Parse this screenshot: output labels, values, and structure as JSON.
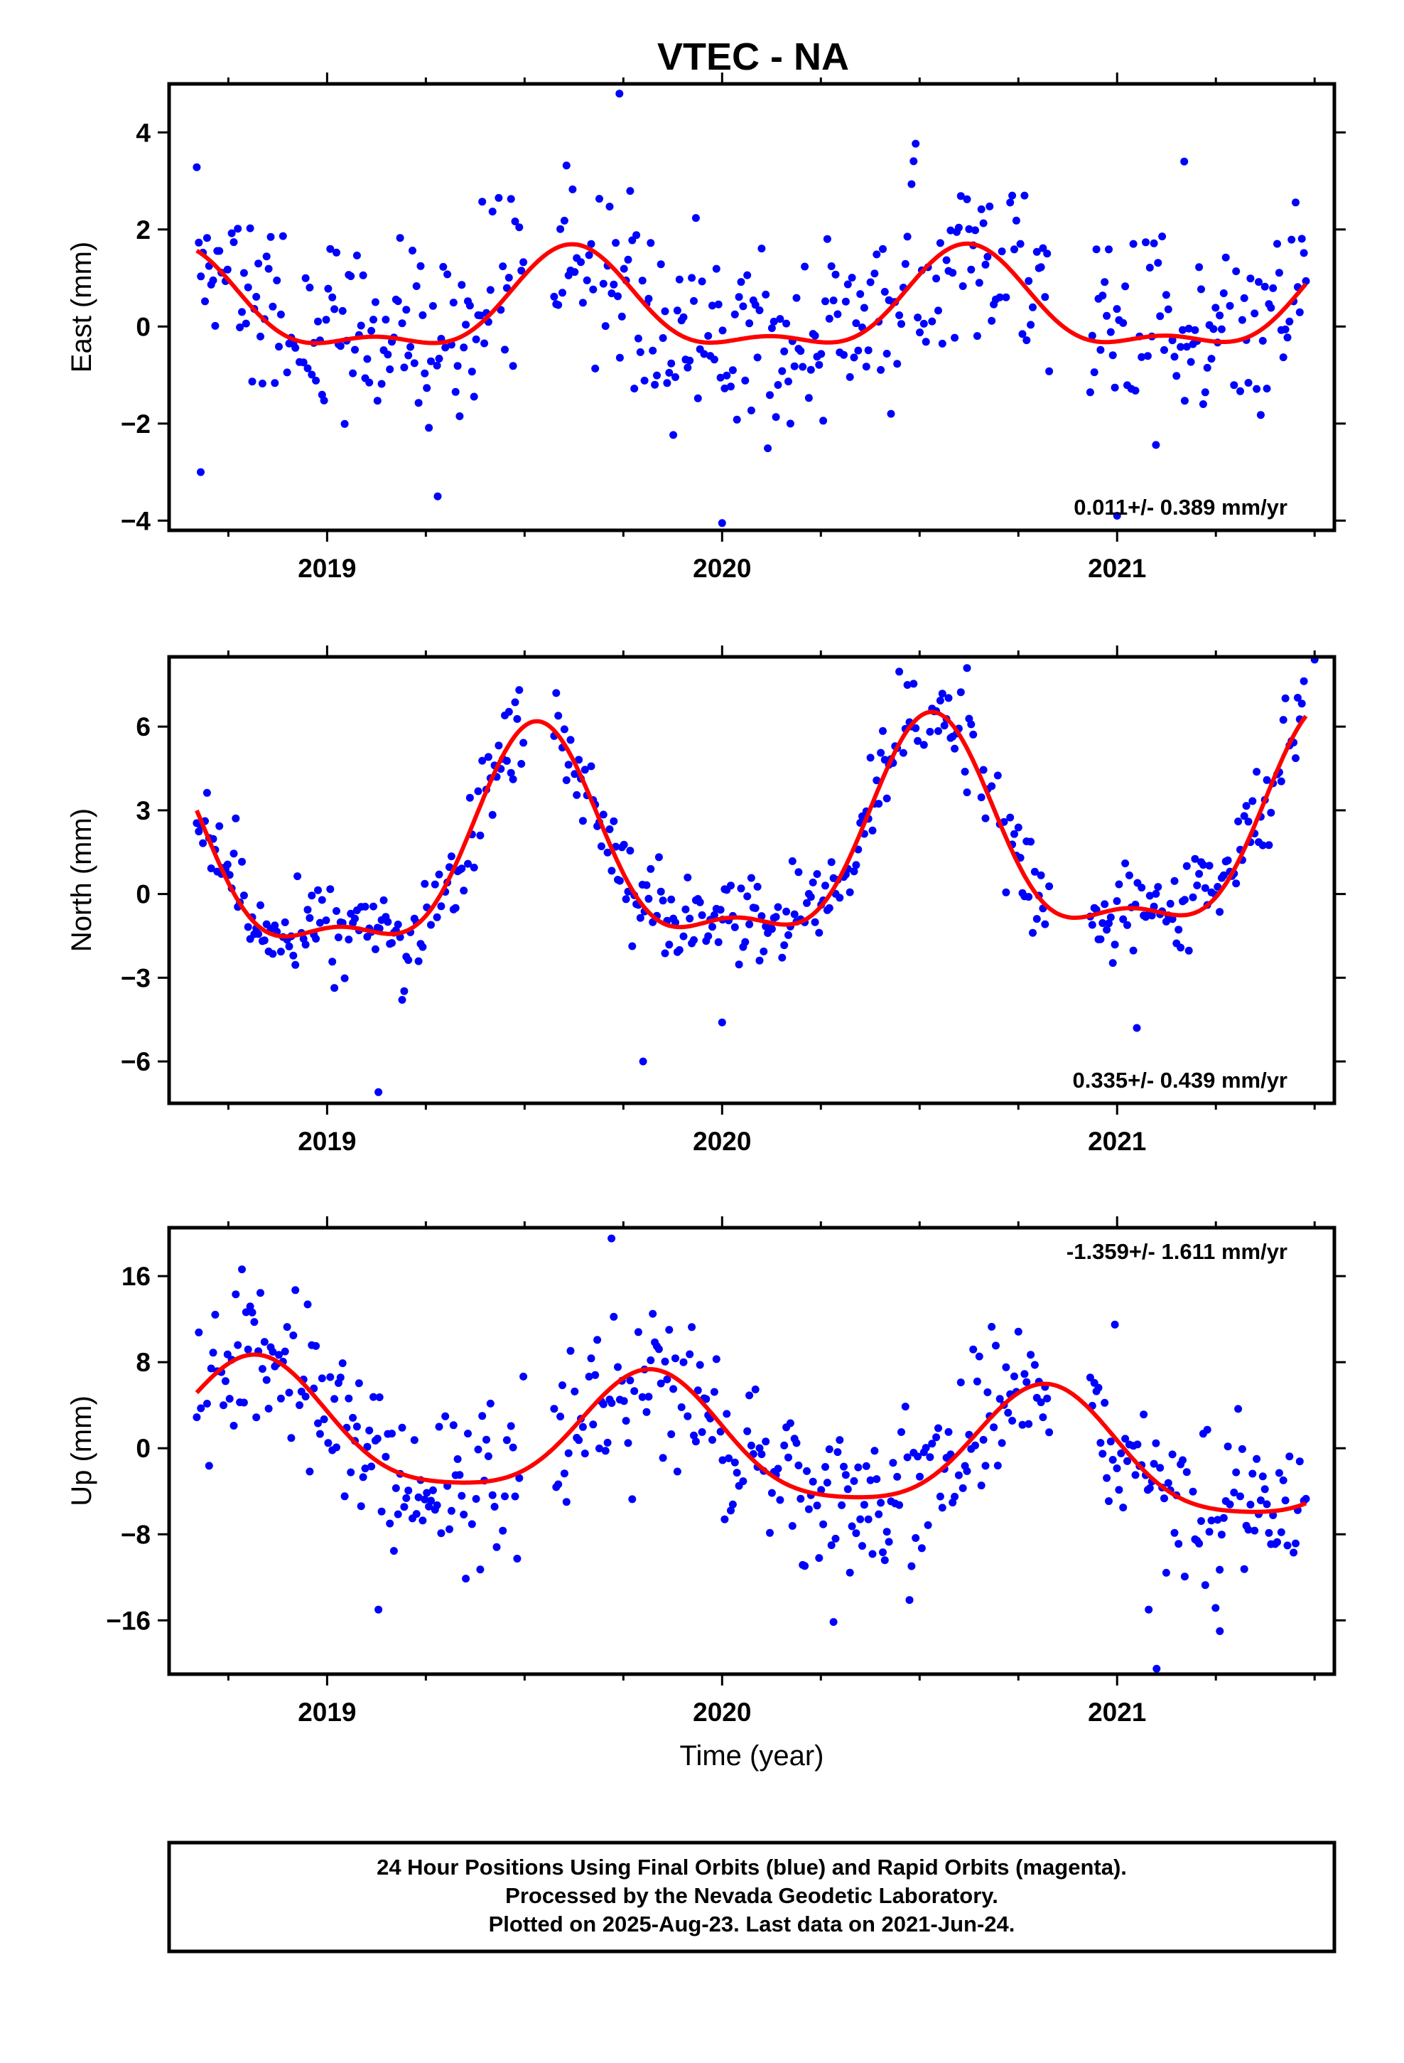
{
  "title": "VTEC - NA",
  "footer": {
    "lines": [
      "24 Hour Positions Using Final Orbits (blue) and Rapid Orbits (magenta).",
      "Processed by the Nevada Geodetic Laboratory.",
      "Plotted on 2025-Aug-23. Last data on 2021-Jun-24."
    ]
  },
  "colors": {
    "points": "#0000ff",
    "model": "#ff0000",
    "frame": "#000000"
  },
  "chart_data": [
    {
      "type": "scatter",
      "ylabel": "East (mm)",
      "xlabel": "",
      "rate": "0.011+/- 0.389 mm/yr",
      "rate_position": "bottom-right",
      "xlim": [
        2018.6,
        2021.55
      ],
      "ylim": [
        -4.2,
        5.0
      ],
      "xticks": [
        2019,
        2020,
        2021
      ],
      "xtick_labels": [
        "2019",
        "2020",
        "2021"
      ],
      "yticks": [
        -4,
        -2,
        0,
        2,
        4
      ],
      "ytick_labels": [
        "−4",
        "−2",
        "0",
        "2",
        "4"
      ],
      "grid": false,
      "model": {
        "mean": 0.35,
        "annual_amp": 0.95,
        "annual_peak": 2019.62,
        "semi_amp": 0.4,
        "semi_peak": 2019.62,
        "slope_mm_per_yr": 0.011,
        "t0": 2020.0
      },
      "noise_sd": 0.95,
      "outliers": [
        [
          2019.74,
          4.8
        ],
        [
          2020.0,
          -4.05
        ],
        [
          2018.68,
          -3.0
        ],
        [
          2021.17,
          3.4
        ],
        [
          2019.28,
          -3.5
        ],
        [
          2021.0,
          -3.9
        ]
      ]
    },
    {
      "type": "scatter",
      "ylabel": "North (mm)",
      "xlabel": "",
      "rate": "0.335+/- 0.439 mm/yr",
      "rate_position": "bottom-right",
      "xlim": [
        2018.6,
        2021.55
      ],
      "ylim": [
        -7.5,
        8.5
      ],
      "xticks": [
        2019,
        2020,
        2021
      ],
      "xtick_labels": [
        "2019",
        "2020",
        "2021"
      ],
      "yticks": [
        -6,
        -3,
        0,
        3,
        6
      ],
      "ytick_labels": [
        "−6",
        "−3",
        "0",
        "3",
        "6"
      ],
      "grid": false,
      "model": {
        "mean": 1.4,
        "annual_amp": 3.6,
        "annual_peak": 2019.53,
        "semi_amp": 1.35,
        "semi_peak": 2019.53,
        "slope_mm_per_yr": 0.335,
        "t0": 2020.0
      },
      "noise_sd": 0.85,
      "outliers": [
        [
          2019.13,
          -7.1
        ],
        [
          2019.8,
          -6.0
        ],
        [
          2020.62,
          8.1
        ],
        [
          2021.5,
          8.4
        ],
        [
          2020.0,
          -4.6
        ],
        [
          2021.05,
          -4.8
        ]
      ]
    },
    {
      "type": "scatter",
      "ylabel": "Up (mm)",
      "xlabel": "Time (year)",
      "rate": "-1.359+/- 1.611 mm/yr",
      "rate_position": "top-right",
      "xlim": [
        2018.6,
        2021.55
      ],
      "ylim": [
        -21,
        20.5
      ],
      "xticks": [
        2019,
        2020,
        2021
      ],
      "xtick_labels": [
        "2019",
        "2020",
        "2021"
      ],
      "yticks": [
        -16,
        -8,
        0,
        8,
        16
      ],
      "ytick_labels": [
        "−16",
        "−8",
        "0",
        "8",
        "16"
      ],
      "grid": false,
      "model": {
        "mean": 0.4,
        "annual_amp": 5.6,
        "annual_peak": 2019.82,
        "semi_amp": 1.1,
        "semi_peak": 2019.82,
        "slope_mm_per_yr": -1.359,
        "t0": 2020.0
      },
      "noise_sd": 3.6,
      "outliers": [
        [
          2019.72,
          19.5
        ],
        [
          2021.1,
          -20.5
        ],
        [
          2021.26,
          -17.0
        ],
        [
          2019.13,
          -15.0
        ],
        [
          2021.08,
          -15.0
        ]
      ]
    }
  ]
}
